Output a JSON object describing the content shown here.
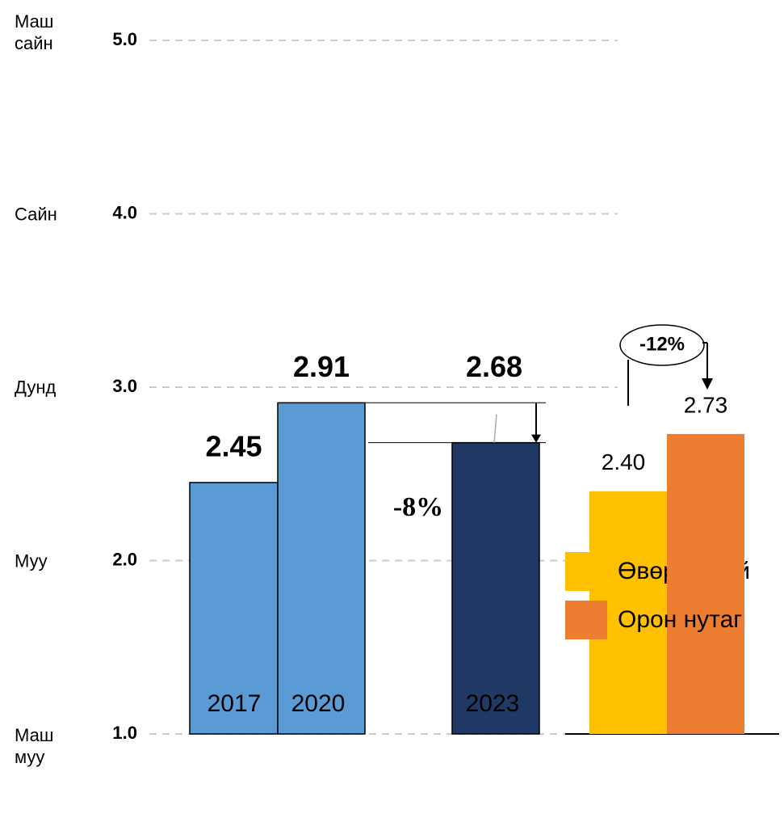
{
  "chart_data": {
    "type": "bar",
    "categories": [
      "2017",
      "2020",
      "2023"
    ],
    "values": [
      2.45,
      2.91,
      2.68
    ],
    "colors": [
      "#5b9bd5",
      "#5b9bd5",
      "#203864"
    ],
    "ylim": [
      1,
      5
    ],
    "yticks": [
      {
        "value": 1,
        "label": "1.0"
      },
      {
        "value": 2,
        "label": "2.0"
      },
      {
        "value": 3,
        "label": "3.0"
      },
      {
        "value": 4,
        "label": "4.0"
      },
      {
        "value": 5,
        "label": "5.0"
      }
    ],
    "ytick_names": [
      "Маш муу",
      "Муу",
      "Дунд",
      "Сайн",
      "Маш сайн"
    ],
    "grid": true,
    "annotations": [
      "-8%",
      "-12%"
    ],
    "comparison": {
      "series": [
        {
          "name": "Өвөрхангай",
          "color": "#ffc000",
          "values": [
            2.4
          ],
          "value_labels": [
            "2.40"
          ]
        },
        {
          "name": "Орон нутаг",
          "color": "#ed7d31",
          "values": [
            2.73
          ]
        }
      ]
    }
  }
}
